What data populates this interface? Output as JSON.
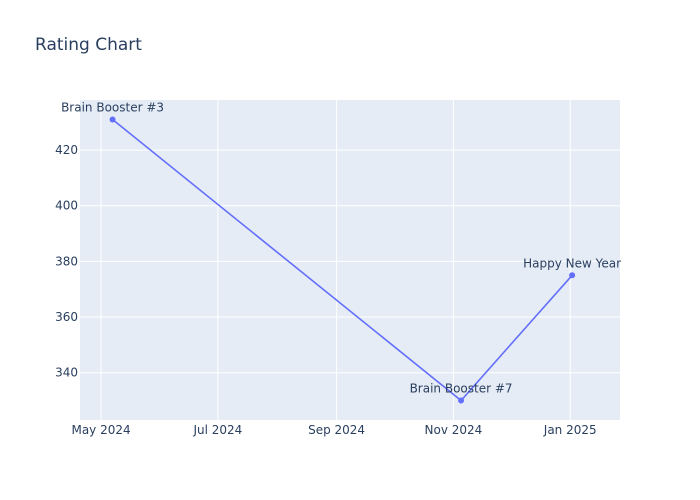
{
  "chart_data": {
    "type": "line",
    "title": "Rating Chart",
    "xlabel": "",
    "ylabel": "",
    "grid": true,
    "legend": "none",
    "x_axis_type": "date",
    "xlim": [
      "2024-04-20",
      "2025-01-27"
    ],
    "ylim": [
      323,
      438
    ],
    "x_ticks": [
      {
        "date": "2024-05-01",
        "label": "May 2024"
      },
      {
        "date": "2024-07-01",
        "label": "Jul 2024"
      },
      {
        "date": "2024-09-01",
        "label": "Sep 2024"
      },
      {
        "date": "2024-11-01",
        "label": "Nov 2024"
      },
      {
        "date": "2025-01-01",
        "label": "Jan 2025"
      }
    ],
    "y_ticks": [
      340,
      360,
      380,
      400,
      420
    ],
    "series": [
      {
        "color": "#636efa",
        "points": [
          {
            "x": "2024-05-07",
            "y": 431,
            "label": "Brain Booster #3",
            "label_pos": "top"
          },
          {
            "x": "2024-11-05",
            "y": 330,
            "label": "Brain Booster #7",
            "label_pos": "top"
          },
          {
            "x": "2025-01-02",
            "y": 375,
            "label": "Happy New Year",
            "label_pos": "top"
          }
        ]
      }
    ]
  },
  "colors": {
    "plot_bg": "#e5ecf6",
    "grid": "#ffffff",
    "text": "#2a3f5f",
    "line": "#636efa"
  }
}
